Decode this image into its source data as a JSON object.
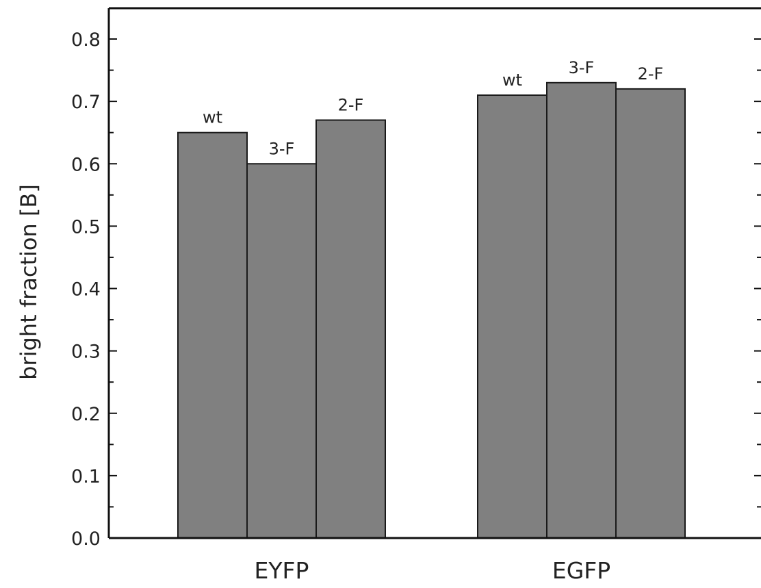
{
  "chart_data": {
    "type": "bar",
    "title": "",
    "xlabel": "",
    "ylabel": "bright fraction [B]",
    "ylim": [
      0.0,
      0.8
    ],
    "yticks": [
      "0.0",
      "0.1",
      "0.2",
      "0.3",
      "0.4",
      "0.5",
      "0.6",
      "0.7",
      "0.8"
    ],
    "grid": false,
    "legend": "none",
    "bar_color": "#808080",
    "groups": [
      {
        "category": "EYFP",
        "bars": [
          {
            "label": "wt",
            "value": 0.65
          },
          {
            "label": "3-F",
            "value": 0.6
          },
          {
            "label": "2-F",
            "value": 0.67
          }
        ]
      },
      {
        "category": "EGFP",
        "bars": [
          {
            "label": "wt",
            "value": 0.71
          },
          {
            "label": "3-F",
            "value": 0.73
          },
          {
            "label": "2-F",
            "value": 0.72
          }
        ]
      }
    ]
  }
}
